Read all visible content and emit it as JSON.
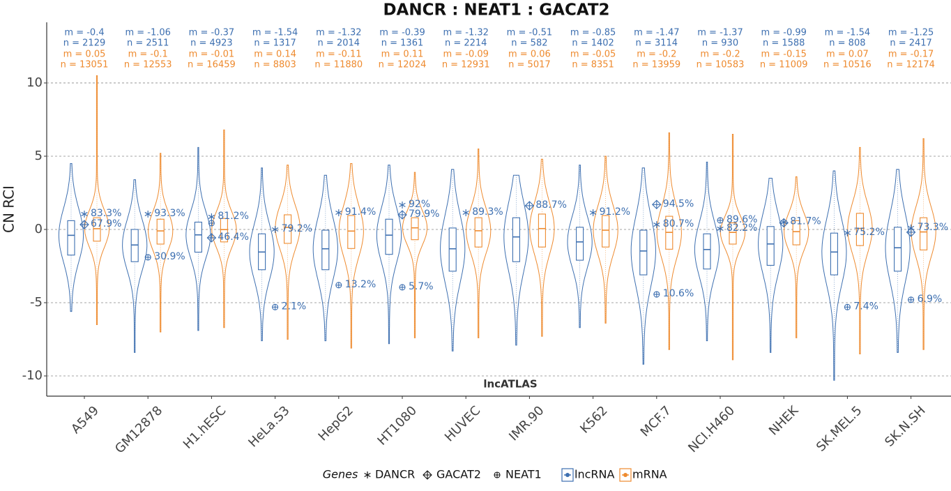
{
  "chart_data": {
    "type": "violin",
    "title": "DANCR : NEAT1 : GACAT2",
    "y_label": "CN RCI",
    "annotation": "lncATLAS",
    "legend_title": "Genes",
    "categories": [
      "A549",
      "GM12878",
      "H1.hESC",
      "HeLa.S3",
      "HepG2",
      "HT1080",
      "HUVEC",
      "IMR.90",
      "K562",
      "MCF.7",
      "NCI.H460",
      "NHEK",
      "SK.MEL.5",
      "SK.N.SH"
    ],
    "ylim": [
      -11.38,
      14.14
    ],
    "yticks": [
      -10,
      -5,
      0,
      5,
      10
    ],
    "grid": true,
    "series": [
      {
        "name": "lncRNA",
        "color": "#3d6fb0",
        "values": [
          -0.4,
          -1.06,
          -0.37,
          -1.54,
          -1.32,
          -0.39,
          -1.32,
          -0.51,
          -0.85,
          -1.47,
          -1.37,
          -0.99,
          -1.54,
          -1.25
        ],
        "value_labels": [
          "m = -0.4",
          "m = -1.06",
          "m = -0.37",
          "m = -1.54",
          "m = -1.32",
          "m = -0.39",
          "m = -1.32",
          "m = -0.51",
          "m = -0.85",
          "m = -1.47",
          "m = -1.37",
          "m = -0.99",
          "m = -1.54",
          "m = -1.25"
        ],
        "n_labels": [
          "n = 2129",
          "n = 2511",
          "n = 4923",
          "n = 1317",
          "n = 2014",
          "n = 1361",
          "n = 2214",
          "n = 582",
          "n = 1402",
          "n = 3114",
          "n = 930",
          "n = 1588",
          "n = 808",
          "n = 2417"
        ],
        "q1": [
          -1.75,
          -2.2,
          -1.55,
          -2.75,
          -2.75,
          -1.7,
          -2.85,
          -2.2,
          -2.1,
          -3.1,
          -2.7,
          -2.45,
          -3.1,
          -2.85
        ],
        "q3": [
          0.6,
          0,
          0.5,
          -0.3,
          -0.05,
          0.7,
          0.1,
          0.8,
          0.15,
          -0.05,
          -0.3,
          0.2,
          -0.25,
          0.15
        ],
        "min": [
          -5.6,
          -8.4,
          -6.9,
          -7.6,
          -7.6,
          -7.8,
          -8.3,
          -7.9,
          -6.7,
          -9.2,
          -7.6,
          -8.4,
          -10.3,
          -8.4
        ],
        "max": [
          4.5,
          3.4,
          5.6,
          4.2,
          3.7,
          4.4,
          4.1,
          3.7,
          4.4,
          4.2,
          4.6,
          3.5,
          4.0,
          4.1
        ]
      },
      {
        "name": "mRNA",
        "color": "#ee8a2e",
        "values": [
          0.05,
          -0.1,
          -0.01,
          0.14,
          -0.11,
          0.11,
          -0.09,
          0.06,
          -0.05,
          -0.2,
          -0.2,
          -0.15,
          0.07,
          -0.17
        ],
        "value_labels": [
          "m = 0.05",
          "m = -0.1",
          "m = -0.01",
          "m = 0.14",
          "m = -0.11",
          "m = 0.11",
          "m = -0.09",
          "m = 0.06",
          "m = -0.05",
          "m = -0.2",
          "m = -0.2",
          "m = -0.15",
          "m = 0.07",
          "m = -0.17"
        ],
        "n_labels": [
          "n = 13051",
          "n = 12553",
          "n = 16459",
          "n = 8803",
          "n = 11880",
          "n = 12024",
          "n = 12931",
          "n = 5017",
          "n = 8351",
          "n = 13959",
          "n = 10583",
          "n = 11009",
          "n = 10516",
          "n = 12174"
        ],
        "q1": [
          -0.8,
          -1.0,
          -0.85,
          -0.95,
          -1.3,
          -0.7,
          -1.2,
          -1.2,
          -1.2,
          -1.35,
          -1.0,
          -1.05,
          -1.1,
          -1.4
        ],
        "q3": [
          0.8,
          0.7,
          0.75,
          1.0,
          0.95,
          0.8,
          0.8,
          1.05,
          0.95,
          0.9,
          0.45,
          0.6,
          1.1,
          0.8
        ],
        "min": [
          -6.5,
          -7.0,
          -6.7,
          -7.5,
          -8.1,
          -7.4,
          -7.4,
          -7.3,
          -6.4,
          -8.2,
          -8.9,
          -7.4,
          -8.5,
          -8.2
        ],
        "max": [
          10.5,
          5.2,
          6.8,
          4.4,
          4.5,
          3.9,
          5.5,
          4.8,
          5.0,
          6.6,
          6.5,
          3.6,
          5.6,
          6.2
        ]
      }
    ],
    "marker_color": "#3d6fb0",
    "genes": [
      {
        "name": "DANCR",
        "symbol": "asterisk",
        "values": [
          1.05,
          1.05,
          0.86,
          0,
          1.14,
          1.67,
          1.14,
          null,
          1.14,
          0.33,
          0.05,
          0.5,
          -0.24,
          0.1
        ],
        "value_labels": [
          "83.3%",
          "93.3%",
          "81.2%",
          "79.2%",
          "91.4%",
          "92%",
          "89.3%",
          null,
          "91.2%",
          "80.7%",
          "82.2%",
          "81.7%",
          "75.2%",
          "73.3%"
        ]
      },
      {
        "name": "GACAT2",
        "symbol": "diamond-plus",
        "values": [
          0.33,
          null,
          -0.57,
          null,
          null,
          1.0,
          null,
          1.62,
          null,
          1.7,
          null,
          0.45,
          null,
          -0.19
        ],
        "value_labels": [
          "67.9%",
          null,
          "46.4%",
          null,
          null,
          "79.9%",
          null,
          "88.7%",
          null,
          "94.5%",
          null,
          null,
          null,
          null
        ]
      },
      {
        "name": "NEAT1",
        "symbol": "circle-plus",
        "values": [
          null,
          -1.9,
          0.43,
          -5.3,
          -3.8,
          -3.95,
          null,
          null,
          null,
          -4.43,
          0.62,
          null,
          -5.3,
          -4.8
        ],
        "value_labels": [
          null,
          "30.9%",
          null,
          "2.1%",
          "13.2%",
          "5.7%",
          null,
          null,
          null,
          "10.6%",
          "89.6%",
          null,
          "7.4%",
          "6.9%"
        ]
      }
    ]
  }
}
